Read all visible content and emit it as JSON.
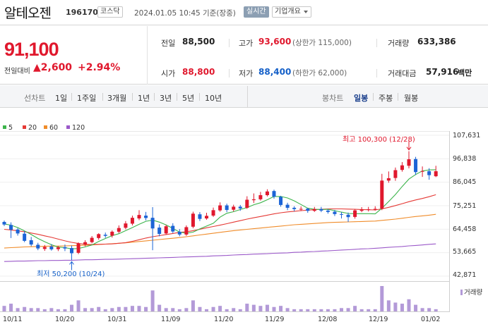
{
  "stock": {
    "name": "알테오젠",
    "code": "196170",
    "market": "코스닥",
    "date_text": "2024.01.05 10:45 기준(장중)",
    "realtime_label": "실시간",
    "overview_label": "기업개요"
  },
  "quote": {
    "price": "91,100",
    "change_label": "전일대비",
    "change_value": "▲2,600",
    "change_pct": "+2.94%",
    "prev_label": "전일",
    "prev_value": "88,500",
    "high_label": "고가",
    "high_value": "93,600",
    "upper_limit": "(상한가 115,000)",
    "volume_label": "거래량",
    "volume_value": "633,386",
    "open_label": "시가",
    "open_value": "88,800",
    "low_label": "저가",
    "low_value": "88,400",
    "lower_limit": "(하한가 62,000)",
    "amount_label": "거래대금",
    "amount_value": "57,916",
    "amount_unit": "백만"
  },
  "periods": {
    "line_label": "선차트",
    "line_items": [
      "1일",
      "1주일",
      "3개월",
      "1년",
      "3년",
      "5년",
      "10년"
    ],
    "candle_label": "봉차트",
    "candle_items": [
      "일봉",
      "주봉",
      "월봉"
    ],
    "candle_selected": "일봉"
  },
  "legend": [
    {
      "label": "5",
      "color": "#3cb44b"
    },
    {
      "label": "20",
      "color": "#e53935"
    },
    {
      "label": "60",
      "color": "#f08c2a"
    },
    {
      "label": "120",
      "color": "#9b59c9"
    }
  ],
  "volume_legend": "거래량",
  "chart_data": {
    "type": "candlestick",
    "title": "알테오젠 일봉",
    "y_ticks": [
      "107,631",
      "96,838",
      "86,045",
      "75,251",
      "64,458",
      "53,665",
      "42,871"
    ],
    "y_range": [
      42871,
      107631
    ],
    "x_ticks": [
      "10/11",
      "10/20",
      "10/31",
      "11/09",
      "11/20",
      "11/29",
      "12/08",
      "12/19",
      "01/02"
    ],
    "annotations": {
      "high": "최고 100,300 (12/28)",
      "low": "최저 50,200 (10/24)"
    },
    "candles": [
      {
        "o": 67800,
        "c": 66600,
        "h": 68400,
        "l": 65900
      },
      {
        "o": 66400,
        "c": 64200,
        "h": 67600,
        "l": 60400
      },
      {
        "o": 64300,
        "c": 62500,
        "h": 65000,
        "l": 61500
      },
      {
        "o": 62400,
        "c": 59100,
        "h": 63600,
        "l": 58500
      },
      {
        "o": 59400,
        "c": 57400,
        "h": 60900,
        "l": 56600
      },
      {
        "o": 57300,
        "c": 55600,
        "h": 58200,
        "l": 54800
      },
      {
        "o": 55400,
        "c": 56300,
        "h": 57200,
        "l": 54500
      },
      {
        "o": 56500,
        "c": 55200,
        "h": 57600,
        "l": 54600
      },
      {
        "o": 55300,
        "c": 56100,
        "h": 56700,
        "l": 54400
      },
      {
        "o": 56200,
        "c": 55600,
        "h": 57400,
        "l": 54400
      },
      {
        "o": 55800,
        "c": 53400,
        "h": 56900,
        "l": 50200
      },
      {
        "o": 53600,
        "c": 57900,
        "h": 58400,
        "l": 53000
      },
      {
        "o": 57400,
        "c": 58500,
        "h": 59400,
        "l": 56600
      },
      {
        "o": 58500,
        "c": 60500,
        "h": 61300,
        "l": 58000
      },
      {
        "o": 60400,
        "c": 62200,
        "h": 62600,
        "l": 59600
      },
      {
        "o": 61900,
        "c": 61400,
        "h": 62900,
        "l": 60500
      },
      {
        "o": 61500,
        "c": 63300,
        "h": 63900,
        "l": 60600
      },
      {
        "o": 63300,
        "c": 65000,
        "h": 66200,
        "l": 62600
      },
      {
        "o": 65100,
        "c": 67100,
        "h": 68200,
        "l": 64400
      },
      {
        "o": 67000,
        "c": 69700,
        "h": 70700,
        "l": 66200
      },
      {
        "o": 69400,
        "c": 71000,
        "h": 73200,
        "l": 68600
      },
      {
        "o": 70700,
        "c": 69600,
        "h": 72400,
        "l": 68500
      },
      {
        "o": 69700,
        "c": 64800,
        "h": 74600,
        "l": 54800
      },
      {
        "o": 65200,
        "c": 62300,
        "h": 66700,
        "l": 61200
      },
      {
        "o": 62500,
        "c": 65800,
        "h": 66400,
        "l": 61900
      },
      {
        "o": 66000,
        "c": 63400,
        "h": 67200,
        "l": 62700
      },
      {
        "o": 63300,
        "c": 62000,
        "h": 64500,
        "l": 61200
      },
      {
        "o": 62000,
        "c": 65400,
        "h": 66200,
        "l": 61400
      },
      {
        "o": 65600,
        "c": 71600,
        "h": 72500,
        "l": 64900
      },
      {
        "o": 71300,
        "c": 69200,
        "h": 72300,
        "l": 68200
      },
      {
        "o": 69400,
        "c": 70600,
        "h": 72000,
        "l": 68800
      },
      {
        "o": 70700,
        "c": 73200,
        "h": 74400,
        "l": 70100
      },
      {
        "o": 73100,
        "c": 75400,
        "h": 76800,
        "l": 72500
      },
      {
        "o": 75400,
        "c": 73300,
        "h": 76200,
        "l": 72300
      },
      {
        "o": 73400,
        "c": 74800,
        "h": 75700,
        "l": 72600
      },
      {
        "o": 74800,
        "c": 74000,
        "h": 75600,
        "l": 72900
      },
      {
        "o": 74300,
        "c": 78000,
        "h": 79600,
        "l": 73800
      },
      {
        "o": 77800,
        "c": 78200,
        "h": 80900,
        "l": 76500
      },
      {
        "o": 78200,
        "c": 80100,
        "h": 81600,
        "l": 77600
      },
      {
        "o": 80100,
        "c": 81800,
        "h": 82800,
        "l": 79500
      },
      {
        "o": 82000,
        "c": 79400,
        "h": 82600,
        "l": 78500
      },
      {
        "o": 79300,
        "c": 75600,
        "h": 79800,
        "l": 74800
      },
      {
        "o": 75700,
        "c": 74300,
        "h": 76600,
        "l": 73200
      },
      {
        "o": 74300,
        "c": 73700,
        "h": 75000,
        "l": 72700
      },
      {
        "o": 73700,
        "c": 73800,
        "h": 74900,
        "l": 72800
      },
      {
        "o": 73900,
        "c": 72900,
        "h": 74300,
        "l": 72000
      },
      {
        "o": 72900,
        "c": 73700,
        "h": 74700,
        "l": 72400
      },
      {
        "o": 73700,
        "c": 73000,
        "h": 74700,
        "l": 72300
      },
      {
        "o": 73000,
        "c": 72400,
        "h": 73700,
        "l": 71600
      },
      {
        "o": 72500,
        "c": 71400,
        "h": 73300,
        "l": 70500
      },
      {
        "o": 71400,
        "c": 71100,
        "h": 72300,
        "l": 69400
      },
      {
        "o": 71100,
        "c": 70000,
        "h": 72100,
        "l": 67800
      },
      {
        "o": 70100,
        "c": 73100,
        "h": 73800,
        "l": 69300
      },
      {
        "o": 72900,
        "c": 73400,
        "h": 74600,
        "l": 72300
      },
      {
        "o": 73400,
        "c": 73600,
        "h": 74700,
        "l": 72600
      },
      {
        "o": 73700,
        "c": 73800,
        "h": 75000,
        "l": 73000
      },
      {
        "o": 73900,
        "c": 86800,
        "h": 89900,
        "l": 73200
      },
      {
        "o": 86800,
        "c": 87900,
        "h": 91000,
        "l": 85800
      },
      {
        "o": 88000,
        "c": 91600,
        "h": 92800,
        "l": 86700
      },
      {
        "o": 91700,
        "c": 93800,
        "h": 95300,
        "l": 90900
      },
      {
        "o": 93600,
        "c": 96600,
        "h": 100300,
        "l": 92400
      },
      {
        "o": 96700,
        "c": 90700,
        "h": 97700,
        "l": 89400
      },
      {
        "o": 90900,
        "c": 91200,
        "h": 93300,
        "l": 88500
      },
      {
        "o": 91100,
        "c": 89300,
        "h": 92500,
        "l": 87200
      },
      {
        "o": 88800,
        "c": 91100,
        "h": 93600,
        "l": 88400
      }
    ],
    "ma5": [
      66900,
      66300,
      65200,
      63700,
      62000,
      60200,
      58700,
      57300,
      56200,
      56000,
      55400,
      55600,
      56300,
      57200,
      58800,
      60200,
      61500,
      62400,
      63800,
      65200,
      66700,
      68100,
      68600,
      67700,
      66400,
      64800,
      63100,
      62600,
      63100,
      64600,
      65900,
      67200,
      70000,
      71800,
      72500,
      73500,
      74400,
      75700,
      76600,
      78000,
      79500,
      79500,
      78800,
      77500,
      75800,
      74100,
      73600,
      73500,
      73600,
      73000,
      72300,
      71700,
      71600,
      71600,
      71600,
      71500,
      74100,
      77200,
      80400,
      84100,
      87500,
      89600,
      91200,
      91700,
      91800
    ],
    "ma20": [
      64400,
      64100,
      63700,
      63300,
      62700,
      62100,
      61400,
      60700,
      59900,
      59100,
      58400,
      57900,
      57500,
      57400,
      57500,
      57600,
      57700,
      58000,
      58300,
      58900,
      59600,
      60400,
      61000,
      61500,
      62000,
      62500,
      63000,
      63300,
      63800,
      64400,
      65100,
      65700,
      66300,
      67000,
      67700,
      68400,
      69100,
      69700,
      70300,
      70900,
      71500,
      72000,
      72400,
      72700,
      73000,
      73200,
      73400,
      73600,
      73800,
      73800,
      73800,
      73700,
      73600,
      73500,
      73400,
      73300,
      73800,
      74500,
      75300,
      76200,
      77100,
      77900,
      78600,
      79400,
      80300
    ],
    "ma60": [
      55800,
      56000,
      56100,
      56300,
      56400,
      56500,
      56600,
      56700,
      56700,
      56800,
      56900,
      57000,
      57100,
      57200,
      57400,
      57600,
      57800,
      58000,
      58200,
      58500,
      58800,
      59100,
      59400,
      59700,
      60000,
      60300,
      60600,
      61000,
      61400,
      61800,
      62200,
      62600,
      63000,
      63400,
      63800,
      64100,
      64400,
      64700,
      65000,
      65300,
      65600,
      65900,
      66200,
      66500,
      66700,
      66900,
      67100,
      67300,
      67500,
      67600,
      67700,
      67800,
      67900,
      68000,
      68100,
      68200,
      68500,
      68800,
      69100,
      69500,
      69900,
      70300,
      70600,
      70900,
      71300
    ],
    "ma120": [
      49600,
      49700,
      49800,
      49800,
      49900,
      50000,
      50000,
      50100,
      50100,
      50200,
      50200,
      50300,
      50400,
      50400,
      50500,
      50600,
      50600,
      50700,
      50800,
      50900,
      51000,
      51100,
      51200,
      51300,
      51400,
      51500,
      51600,
      51700,
      51800,
      51900,
      52000,
      52200,
      52300,
      52400,
      52600,
      52700,
      52800,
      53000,
      53100,
      53200,
      53400,
      53500,
      53600,
      53800,
      53900,
      54100,
      54200,
      54400,
      54500,
      54700,
      54900,
      55000,
      55200,
      55400,
      55500,
      55700,
      55900,
      56100,
      56300,
      56500,
      56800,
      57000,
      57200,
      57500,
      57700
    ],
    "volumes": [
      5,
      7,
      3,
      4,
      3,
      3,
      2,
      3,
      2,
      2,
      6,
      10,
      3,
      3,
      4,
      2,
      3,
      4,
      4,
      5,
      5,
      4,
      19,
      6,
      3,
      3,
      2,
      3,
      10,
      4,
      2,
      4,
      5,
      2,
      3,
      2,
      7,
      6,
      5,
      6,
      4,
      5,
      3,
      2,
      2,
      2,
      2,
      2,
      2,
      2,
      3,
      3,
      5,
      2,
      2,
      2,
      23,
      10,
      8,
      7,
      11,
      6,
      3,
      3,
      2
    ]
  }
}
